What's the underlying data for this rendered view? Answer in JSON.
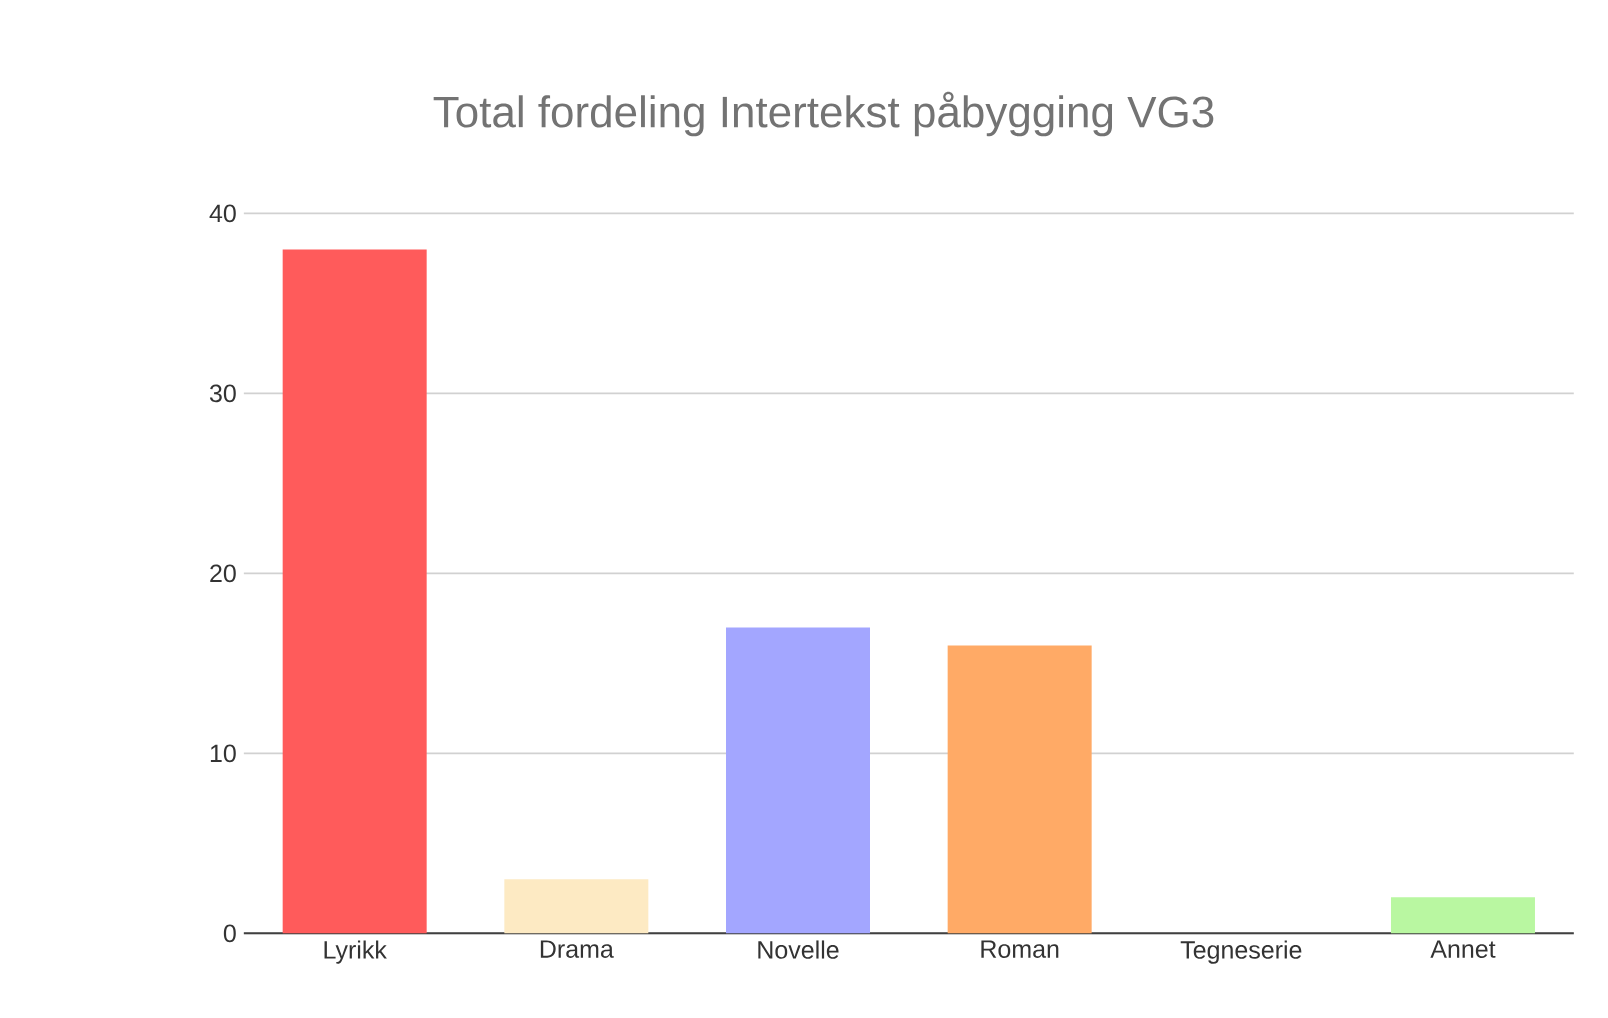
{
  "chart_data": {
    "type": "bar",
    "title": "Total fordeling Intertekst påbygging VG3",
    "categories": [
      "Lyrikk",
      "Drama",
      "Novelle",
      "Roman",
      "Tegneserie",
      "Annet"
    ],
    "values": [
      38,
      3,
      17,
      16,
      0,
      2
    ],
    "colors": [
      "#ff5b5b",
      "#fdeac3",
      "#a3a6ff",
      "#ffaa66",
      null,
      "#b9f7a1"
    ],
    "ylim": [
      0,
      40
    ],
    "yticks": [
      0,
      10,
      20,
      30,
      40
    ],
    "grid": "y"
  }
}
